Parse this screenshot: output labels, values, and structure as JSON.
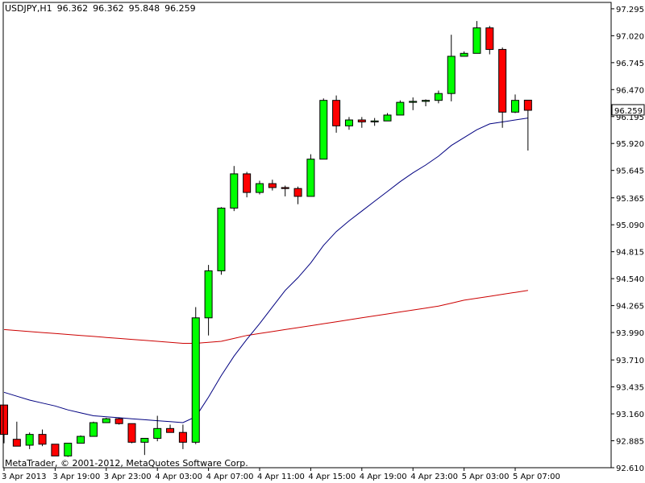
{
  "header": {
    "symbol": "USDJPY,H1",
    "open": "96.362",
    "high": "96.362",
    "low": "95.848",
    "close": "96.259"
  },
  "copyright": "MetaTrader, © 2001-2012, MetaQuotes Software Corp.",
  "current_price_label": "96.259",
  "colors": {
    "bull": "#00ff00",
    "bear": "#ff0000",
    "ma_fast": "#000080",
    "ma_slow": "#cc0000",
    "axis": "#000000",
    "price_tag_bg": "#ffffff"
  },
  "chart_data": {
    "type": "candlestick",
    "ylim": [
      92.61,
      97.36
    ],
    "y_ticks": [
      "97.295",
      "97.020",
      "96.745",
      "96.470",
      "96.195",
      "95.920",
      "95.645",
      "95.365",
      "95.090",
      "94.815",
      "94.540",
      "94.265",
      "93.990",
      "93.710",
      "93.435",
      "93.160",
      "92.885",
      "92.610"
    ],
    "x_ticks": [
      "3 Apr 2013",
      "3 Apr 19:00",
      "3 Apr 23:00",
      "4 Apr 03:00",
      "4 Apr 07:00",
      "4 Apr 11:00",
      "4 Apr 15:00",
      "4 Apr 19:00",
      "4 Apr 23:00",
      "5 Apr 03:00",
      "5 Apr 07:00"
    ],
    "x_tick_bar_index": [
      0,
      4,
      8,
      12,
      16,
      20,
      24,
      28,
      32,
      36,
      40
    ],
    "candles": [
      {
        "o": 93.25,
        "h": 93.25,
        "l": 92.86,
        "c": 92.95
      },
      {
        "o": 92.9,
        "h": 93.08,
        "l": 92.83,
        "c": 92.83
      },
      {
        "o": 92.84,
        "h": 92.97,
        "l": 92.8,
        "c": 92.95
      },
      {
        "o": 92.95,
        "h": 93.0,
        "l": 92.83,
        "c": 92.85
      },
      {
        "o": 92.85,
        "h": 92.85,
        "l": 92.73,
        "c": 92.73
      },
      {
        "o": 92.73,
        "h": 92.86,
        "l": 92.72,
        "c": 92.86
      },
      {
        "o": 92.86,
        "h": 92.94,
        "l": 92.86,
        "c": 92.93
      },
      {
        "o": 92.93,
        "h": 93.08,
        "l": 92.93,
        "c": 93.07
      },
      {
        "o": 93.07,
        "h": 93.12,
        "l": 93.07,
        "c": 93.11
      },
      {
        "o": 93.11,
        "h": 93.12,
        "l": 93.05,
        "c": 93.06
      },
      {
        "o": 93.06,
        "h": 93.06,
        "l": 92.86,
        "c": 92.87
      },
      {
        "o": 92.87,
        "h": 92.91,
        "l": 92.74,
        "c": 92.91
      },
      {
        "o": 92.91,
        "h": 93.14,
        "l": 92.88,
        "c": 93.01
      },
      {
        "o": 93.01,
        "h": 93.05,
        "l": 92.99,
        "c": 92.97
      },
      {
        "o": 92.97,
        "h": 93.05,
        "l": 92.8,
        "c": 92.87
      },
      {
        "o": 92.87,
        "h": 94.25,
        "l": 92.85,
        "c": 94.14
      },
      {
        "o": 94.14,
        "h": 94.68,
        "l": 93.96,
        "c": 94.62
      },
      {
        "o": 94.62,
        "h": 95.27,
        "l": 94.58,
        "c": 95.26
      },
      {
        "o": 95.26,
        "h": 95.69,
        "l": 95.23,
        "c": 95.61
      },
      {
        "o": 95.61,
        "h": 95.63,
        "l": 95.37,
        "c": 95.42
      },
      {
        "o": 95.42,
        "h": 95.54,
        "l": 95.4,
        "c": 95.51
      },
      {
        "o": 95.51,
        "h": 95.55,
        "l": 95.44,
        "c": 95.47
      },
      {
        "o": 95.47,
        "h": 95.49,
        "l": 95.38,
        "c": 95.46
      },
      {
        "o": 95.46,
        "h": 95.48,
        "l": 95.3,
        "c": 95.38
      },
      {
        "o": 95.38,
        "h": 95.81,
        "l": 95.38,
        "c": 95.76
      },
      {
        "o": 95.76,
        "h": 96.38,
        "l": 95.76,
        "c": 96.36
      },
      {
        "o": 96.36,
        "h": 96.41,
        "l": 96.03,
        "c": 96.1
      },
      {
        "o": 96.1,
        "h": 96.19,
        "l": 96.06,
        "c": 96.16
      },
      {
        "o": 96.16,
        "h": 96.19,
        "l": 96.08,
        "c": 96.14
      },
      {
        "o": 96.14,
        "h": 96.18,
        "l": 96.1,
        "c": 96.15
      },
      {
        "o": 96.15,
        "h": 96.23,
        "l": 96.15,
        "c": 96.21
      },
      {
        "o": 96.21,
        "h": 96.36,
        "l": 96.21,
        "c": 96.34
      },
      {
        "o": 96.34,
        "h": 96.39,
        "l": 96.26,
        "c": 96.35
      },
      {
        "o": 96.35,
        "h": 96.37,
        "l": 96.3,
        "c": 96.36
      },
      {
        "o": 96.36,
        "h": 96.46,
        "l": 96.33,
        "c": 96.43
      },
      {
        "o": 96.43,
        "h": 97.03,
        "l": 96.35,
        "c": 96.81
      },
      {
        "o": 96.81,
        "h": 96.86,
        "l": 96.81,
        "c": 96.84
      },
      {
        "o": 96.84,
        "h": 97.17,
        "l": 96.84,
        "c": 97.1
      },
      {
        "o": 97.1,
        "h": 97.12,
        "l": 96.83,
        "c": 96.88
      },
      {
        "o": 96.88,
        "h": 96.9,
        "l": 96.08,
        "c": 96.24
      },
      {
        "o": 96.24,
        "h": 96.42,
        "l": 96.23,
        "c": 96.36
      },
      {
        "o": 96.362,
        "h": 96.362,
        "l": 95.848,
        "c": 96.259
      }
    ],
    "ma_fast": [
      93.38,
      93.34,
      93.3,
      93.27,
      93.24,
      93.2,
      93.17,
      93.14,
      93.13,
      93.12,
      93.11,
      93.1,
      93.09,
      93.08,
      93.07,
      93.13,
      93.33,
      93.55,
      93.75,
      93.92,
      94.08,
      94.25,
      94.42,
      94.55,
      94.7,
      94.88,
      95.02,
      95.13,
      95.23,
      95.33,
      95.43,
      95.53,
      95.62,
      95.7,
      95.79,
      95.9,
      95.98,
      96.06,
      96.12,
      96.14,
      96.16,
      96.18
    ],
    "ma_slow": [
      94.02,
      94.01,
      94.0,
      93.99,
      93.98,
      93.97,
      93.96,
      93.95,
      93.94,
      93.93,
      93.92,
      93.91,
      93.9,
      93.89,
      93.88,
      93.88,
      93.89,
      93.9,
      93.93,
      93.96,
      93.98,
      94.0,
      94.02,
      94.04,
      94.06,
      94.08,
      94.1,
      94.12,
      94.14,
      94.16,
      94.18,
      94.2,
      94.22,
      94.24,
      94.26,
      94.29,
      94.32,
      94.34,
      94.36,
      94.38,
      94.4,
      94.42
    ]
  }
}
